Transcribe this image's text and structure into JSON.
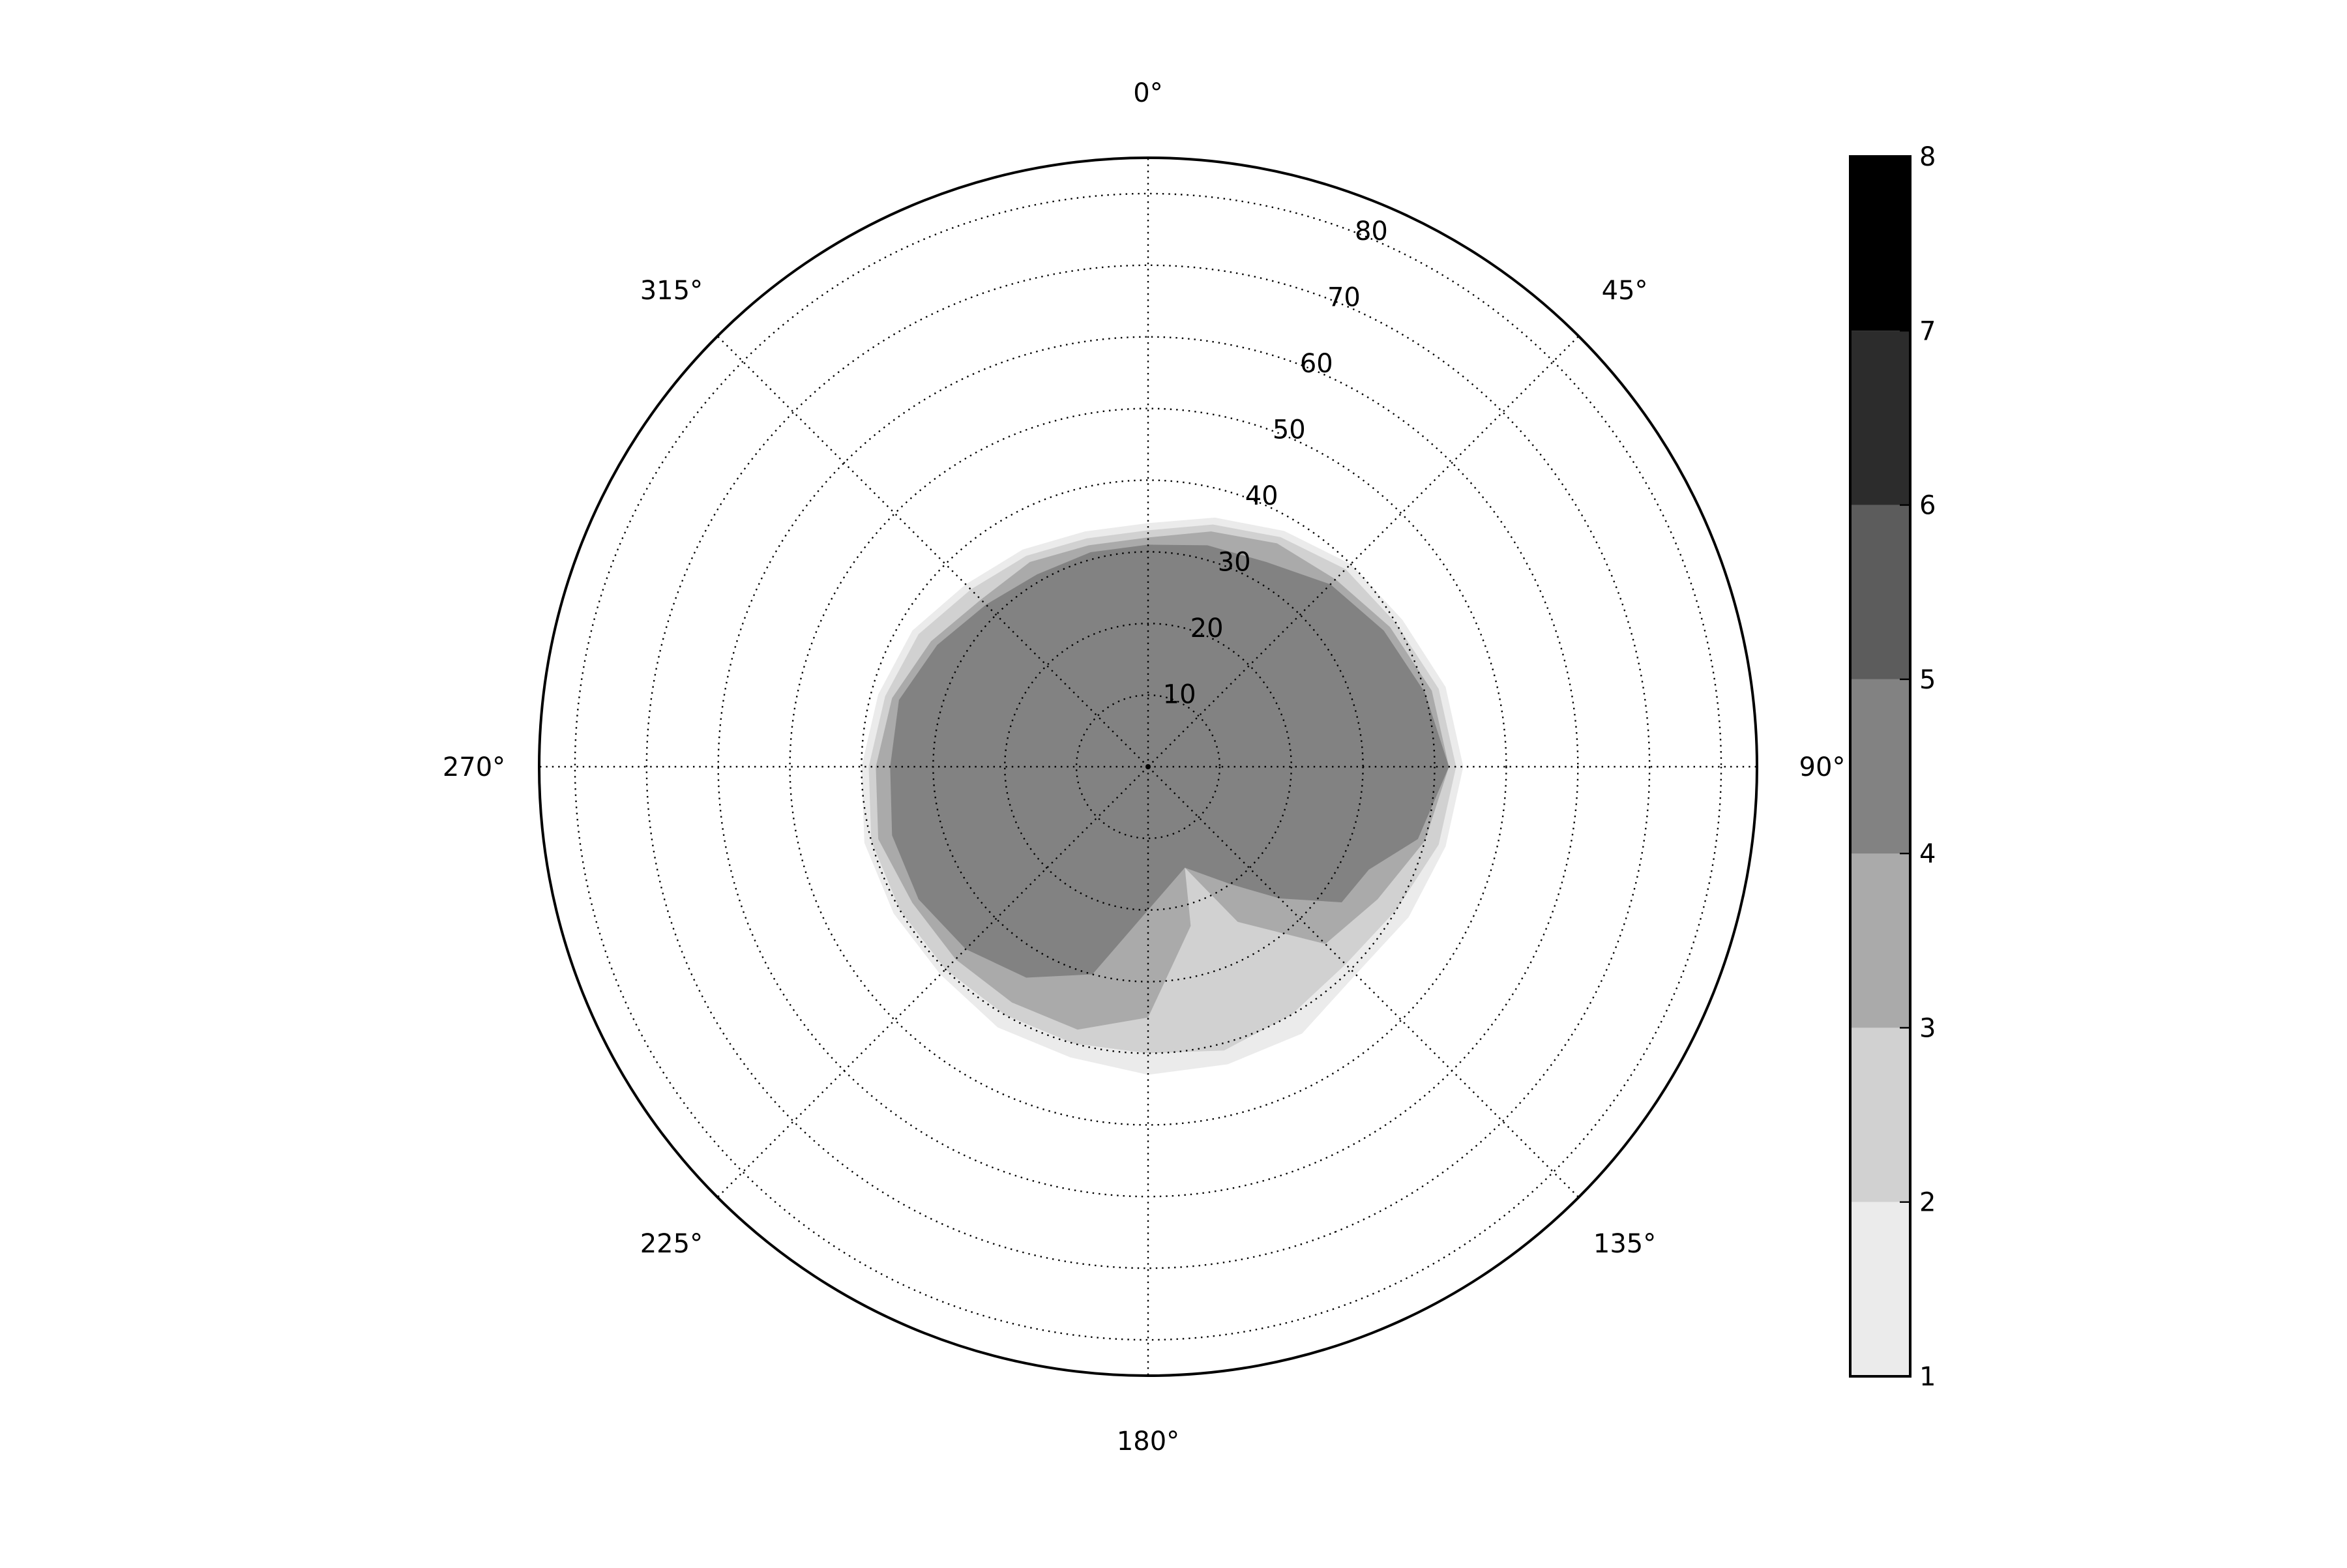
{
  "chart_data": {
    "type": "polar-filled-contour",
    "title": "",
    "theta_zero": "top",
    "theta_direction": "clockwise",
    "angle_ticks": [
      {
        "deg": 0,
        "label": "0°"
      },
      {
        "deg": 45,
        "label": "45°"
      },
      {
        "deg": 90,
        "label": "90°"
      },
      {
        "deg": 135,
        "label": "135°"
      },
      {
        "deg": 180,
        "label": "180°"
      },
      {
        "deg": 225,
        "label": "225°"
      },
      {
        "deg": 270,
        "label": "270°"
      },
      {
        "deg": 315,
        "label": "315°"
      }
    ],
    "r_max": 85,
    "r_ticks": [
      {
        "r": 10,
        "label": "10"
      },
      {
        "r": 20,
        "label": "20"
      },
      {
        "r": 30,
        "label": "30"
      },
      {
        "r": 40,
        "label": "40"
      },
      {
        "r": 50,
        "label": "50"
      },
      {
        "r": 60,
        "label": "60"
      },
      {
        "r": 70,
        "label": "70"
      },
      {
        "r": 80,
        "label": "80"
      }
    ],
    "grid": true,
    "colorbar": {
      "position": "right",
      "ticks": [
        "1",
        "2",
        "3",
        "4",
        "5",
        "6",
        "7",
        "8"
      ],
      "bands": [
        {
          "from": 1,
          "to": 2,
          "color": "#ebebeb"
        },
        {
          "from": 2,
          "to": 3,
          "color": "#d1d1d1"
        },
        {
          "from": 3,
          "to": 4,
          "color": "#aaaaaa"
        },
        {
          "from": 4,
          "to": 5,
          "color": "#828282"
        },
        {
          "from": 5,
          "to": 6,
          "color": "#5c5c5c"
        },
        {
          "from": 6,
          "to": 7,
          "color": "#2c2c2c"
        },
        {
          "from": 7,
          "to": 8,
          "color": "#000000"
        }
      ]
    },
    "levels": [
      {
        "level": 1,
        "color": "#ebebeb",
        "points": [
          [
            0,
            34
          ],
          [
            15,
            36
          ],
          [
            30,
            38
          ],
          [
            45,
            40
          ],
          [
            60,
            41
          ],
          [
            75,
            43
          ],
          [
            90,
            44
          ],
          [
            105,
            43
          ],
          [
            120,
            42
          ],
          [
            135,
            41
          ],
          [
            150,
            43
          ],
          [
            165,
            43
          ],
          [
            180,
            43
          ],
          [
            195,
            42
          ],
          [
            210,
            42
          ],
          [
            225,
            41
          ],
          [
            240,
            41
          ],
          [
            255,
            41
          ],
          [
            270,
            40
          ],
          [
            285,
            39
          ],
          [
            300,
            38
          ],
          [
            315,
            36
          ],
          [
            330,
            35
          ],
          [
            345,
            34
          ]
        ]
      },
      {
        "level": 2,
        "color": "#d1d1d1",
        "points": [
          [
            0,
            33
          ],
          [
            15,
            35
          ],
          [
            30,
            37
          ],
          [
            45,
            39
          ],
          [
            60,
            40
          ],
          [
            75,
            42
          ],
          [
            90,
            43
          ],
          [
            105,
            42
          ],
          [
            120,
            40
          ],
          [
            135,
            39
          ],
          [
            150,
            40
          ],
          [
            165,
            41
          ],
          [
            180,
            40
          ],
          [
            195,
            40
          ],
          [
            210,
            40
          ],
          [
            225,
            40
          ],
          [
            240,
            40
          ],
          [
            255,
            40
          ],
          [
            270,
            39
          ],
          [
            285,
            38
          ],
          [
            300,
            37
          ],
          [
            315,
            35
          ],
          [
            330,
            34
          ],
          [
            345,
            33
          ]
        ]
      },
      {
        "level": 3,
        "color": "#aaaaaa",
        "points": [
          [
            0,
            32
          ],
          [
            15,
            34
          ],
          [
            30,
            36
          ],
          [
            45,
            37
          ],
          [
            60,
            39
          ],
          [
            75,
            41
          ],
          [
            90,
            42
          ],
          [
            105,
            40
          ],
          [
            120,
            37
          ],
          [
            135,
            35
          ],
          [
            150,
            25
          ],
          [
            160,
            15
          ],
          [
            165,
            23
          ],
          [
            180,
            35
          ],
          [
            195,
            38
          ],
          [
            210,
            38
          ],
          [
            225,
            38
          ],
          [
            240,
            38
          ],
          [
            255,
            39
          ],
          [
            270,
            38
          ],
          [
            285,
            37
          ],
          [
            300,
            35
          ],
          [
            315,
            33
          ],
          [
            330,
            33
          ],
          [
            345,
            32
          ]
        ]
      },
      {
        "level": 4,
        "color": "#828282",
        "points": [
          [
            0,
            31
          ],
          [
            15,
            32
          ],
          [
            30,
            33
          ],
          [
            45,
            36
          ],
          [
            60,
            38
          ],
          [
            75,
            40
          ],
          [
            90,
            42
          ],
          [
            105,
            39
          ],
          [
            115,
            34
          ],
          [
            125,
            33
          ],
          [
            135,
            26
          ],
          [
            145,
            20
          ],
          [
            160,
            15
          ],
          [
            180,
            20
          ],
          [
            195,
            30
          ],
          [
            210,
            34
          ],
          [
            225,
            36
          ],
          [
            240,
            37
          ],
          [
            255,
            37
          ],
          [
            270,
            36
          ],
          [
            285,
            36
          ],
          [
            300,
            34
          ],
          [
            315,
            32
          ],
          [
            330,
            31
          ],
          [
            345,
            31
          ]
        ]
      }
    ]
  }
}
